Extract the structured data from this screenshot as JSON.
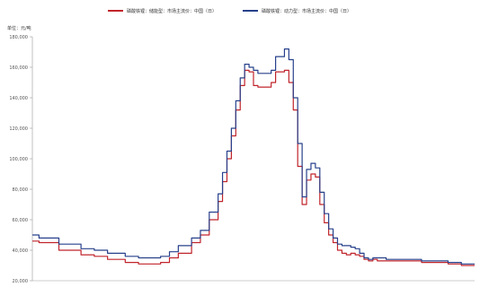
{
  "chart_data": {
    "type": "line",
    "unit_label": "单位：元/吨",
    "y_ticks": [
      20000,
      40000,
      60000,
      80000,
      100000,
      120000,
      140000,
      160000,
      180000
    ],
    "y_tick_labels": [
      "20,000",
      "40,000",
      "60,000",
      "80,000",
      "100,000",
      "120,000",
      "140,000",
      "160,000",
      "180,000"
    ],
    "ylim": [
      20000,
      180000
    ],
    "xlim": [
      0,
      100
    ],
    "grid": false,
    "legend_position": "top-center",
    "series": [
      {
        "name": "磷酸铁锂：储能型：市场主流价：中国（日）",
        "color": "#c0242b",
        "x": [
          0,
          1.5,
          1.5,
          6,
          6,
          11,
          11,
          14,
          14,
          17,
          17,
          21,
          21,
          24,
          24,
          29,
          29,
          31,
          31,
          33,
          33,
          36,
          36,
          38,
          38,
          40,
          40,
          42,
          42,
          43,
          43,
          44,
          44,
          45,
          45,
          46,
          46,
          47,
          47,
          48,
          48,
          49,
          49,
          50,
          50,
          51,
          51,
          52,
          52,
          53,
          53,
          54,
          54,
          55,
          55,
          57,
          57,
          58,
          58,
          59,
          59,
          60,
          60,
          61,
          61,
          62,
          62,
          63,
          63,
          64,
          64,
          65,
          65,
          66,
          66,
          67,
          67,
          68,
          68,
          69,
          69,
          70,
          70,
          71,
          71,
          72,
          72,
          73,
          73,
          74,
          74,
          75,
          75,
          76,
          76,
          77,
          77,
          78,
          78,
          80,
          80,
          85,
          85,
          88,
          88,
          91,
          91,
          94,
          94,
          97,
          97,
          100
        ],
        "values": [
          46000,
          46000,
          45000,
          45000,
          40000,
          40000,
          37000,
          37000,
          36000,
          36000,
          34000,
          34000,
          32000,
          32000,
          31000,
          31000,
          32000,
          32000,
          35000,
          35000,
          38000,
          38000,
          45000,
          45000,
          50000,
          50000,
          60000,
          60000,
          72000,
          72000,
          85000,
          85000,
          100000,
          100000,
          115000,
          115000,
          132000,
          132000,
          148000,
          148000,
          158000,
          158000,
          157000,
          157000,
          148000,
          148000,
          147000,
          147000,
          147000,
          147000,
          147000,
          147000,
          150000,
          150000,
          157000,
          157000,
          158000,
          158000,
          150000,
          150000,
          132000,
          132000,
          95000,
          95000,
          70000,
          70000,
          86000,
          86000,
          90000,
          90000,
          88000,
          88000,
          70000,
          70000,
          58000,
          58000,
          50000,
          50000,
          45000,
          45000,
          40000,
          40000,
          38000,
          38000,
          37000,
          37000,
          38000,
          38000,
          37000,
          37000,
          36000,
          36000,
          34000,
          34000,
          33000,
          33000,
          34000,
          34000,
          33000,
          33000,
          33000,
          33000,
          33000,
          33000,
          32000,
          32000,
          32000,
          32000,
          31000,
          31000,
          30000,
          30000
        ]
      },
      {
        "name": "磷酸铁锂：动力型：市场主流价：中国（日）",
        "color": "#27408b",
        "x": [
          0,
          1.5,
          1.5,
          6,
          6,
          11,
          11,
          14,
          14,
          17,
          17,
          21,
          21,
          24,
          24,
          29,
          29,
          31,
          31,
          33,
          33,
          36,
          36,
          38,
          38,
          40,
          40,
          42,
          42,
          43,
          43,
          44,
          44,
          45,
          45,
          46,
          46,
          47,
          47,
          48,
          48,
          49,
          49,
          50,
          50,
          51,
          51,
          52,
          52,
          53,
          53,
          54,
          54,
          55,
          55,
          57,
          57,
          58,
          58,
          59,
          59,
          60,
          60,
          61,
          61,
          62,
          62,
          63,
          63,
          64,
          64,
          65,
          65,
          66,
          66,
          67,
          67,
          68,
          68,
          69,
          69,
          70,
          70,
          71,
          71,
          72,
          72,
          73,
          73,
          74,
          74,
          75,
          75,
          76,
          76,
          77,
          77,
          78,
          78,
          80,
          80,
          85,
          85,
          88,
          88,
          91,
          91,
          94,
          94,
          97,
          97,
          100
        ],
        "values": [
          50000,
          50000,
          48000,
          48000,
          44000,
          44000,
          41000,
          41000,
          40000,
          40000,
          38000,
          38000,
          36000,
          36000,
          35000,
          35000,
          36000,
          36000,
          39000,
          39000,
          43000,
          43000,
          48000,
          48000,
          53000,
          53000,
          65000,
          65000,
          77000,
          77000,
          91000,
          91000,
          105000,
          105000,
          120000,
          120000,
          138000,
          138000,
          153000,
          153000,
          162000,
          162000,
          160000,
          160000,
          158000,
          158000,
          156000,
          156000,
          156000,
          156000,
          156000,
          156000,
          158000,
          158000,
          167000,
          167000,
          172000,
          172000,
          165000,
          165000,
          140000,
          140000,
          110000,
          110000,
          75000,
          75000,
          93000,
          93000,
          97000,
          97000,
          94000,
          94000,
          78000,
          78000,
          64000,
          64000,
          54000,
          54000,
          48000,
          48000,
          44000,
          44000,
          43000,
          43000,
          43000,
          43000,
          42000,
          42000,
          41000,
          41000,
          38000,
          38000,
          35000,
          35000,
          34000,
          34000,
          35000,
          35000,
          35000,
          35000,
          34000,
          34000,
          34000,
          34000,
          33000,
          33000,
          33000,
          33000,
          32000,
          32000,
          31000,
          31000
        ]
      }
    ]
  }
}
